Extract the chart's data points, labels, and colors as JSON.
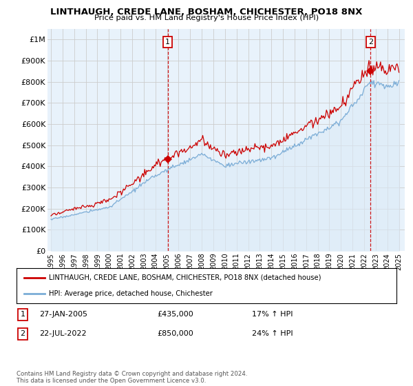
{
  "title": "LINTHAUGH, CREDE LANE, BOSHAM, CHICHESTER, PO18 8NX",
  "subtitle": "Price paid vs. HM Land Registry's House Price Index (HPI)",
  "ylabel_ticks": [
    "£0",
    "£100K",
    "£200K",
    "£300K",
    "£400K",
    "£500K",
    "£600K",
    "£700K",
    "£800K",
    "£900K",
    "£1M"
  ],
  "ytick_values": [
    0,
    100000,
    200000,
    300000,
    400000,
    500000,
    600000,
    700000,
    800000,
    900000,
    1000000
  ],
  "ylim": [
    0,
    1050000
  ],
  "xlim_start": 1994.7,
  "xlim_end": 2025.5,
  "sale1_x": 2005.07,
  "sale1_y": 435000,
  "sale1_label": "1",
  "sale2_x": 2022.55,
  "sale2_y": 850000,
  "sale2_label": "2",
  "property_color": "#cc0000",
  "hpi_color": "#7aacd6",
  "hpi_fill_color": "#dceaf7",
  "vline_color": "#cc0000",
  "grid_color": "#cccccc",
  "bg_color": "#e8f2fb",
  "legend_property": "LINTHAUGH, CREDE LANE, BOSHAM, CHICHESTER, PO18 8NX (detached house)",
  "legend_hpi": "HPI: Average price, detached house, Chichester",
  "annotation1_date": "27-JAN-2005",
  "annotation1_price": "£435,000",
  "annotation1_hpi": "17% ↑ HPI",
  "annotation2_date": "22-JUL-2022",
  "annotation2_price": "£850,000",
  "annotation2_hpi": "24% ↑ HPI",
  "footnote": "Contains HM Land Registry data © Crown copyright and database right 2024.\nThis data is licensed under the Open Government Licence v3.0.",
  "xtick_years": [
    1995,
    1996,
    1997,
    1998,
    1999,
    2000,
    2001,
    2002,
    2003,
    2004,
    2005,
    2006,
    2007,
    2008,
    2009,
    2010,
    2011,
    2012,
    2013,
    2014,
    2015,
    2016,
    2017,
    2018,
    2019,
    2020,
    2021,
    2022,
    2023,
    2024,
    2025
  ]
}
